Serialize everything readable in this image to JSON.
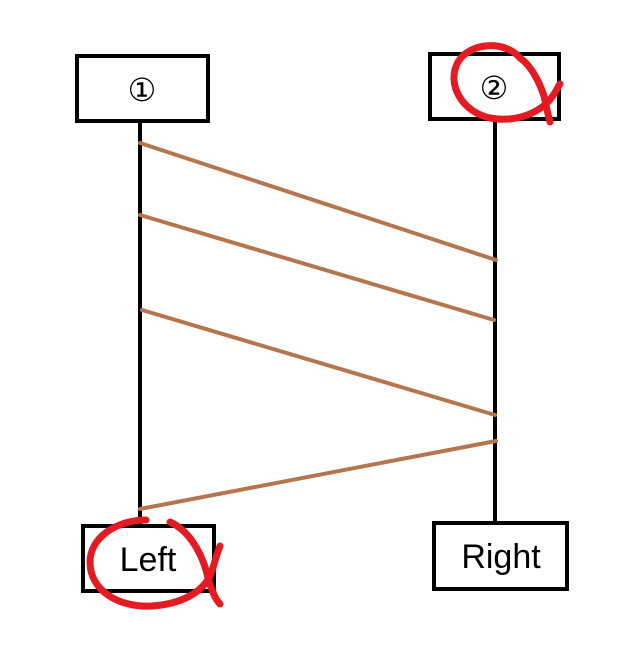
{
  "colors": {
    "background": "#ffffff",
    "box_stroke": "#000000",
    "lifeline": "#000000",
    "message_line": "#b5764e",
    "annotation_circle": "#e51b24"
  },
  "nodes": {
    "top_left_label": "①",
    "top_right_label": "②",
    "bottom_left_label": "Left",
    "bottom_right_label": "Right"
  },
  "annotations": {
    "marked_nodes": [
      "②",
      "Left"
    ],
    "mark_style": "hand-drawn red circle"
  }
}
